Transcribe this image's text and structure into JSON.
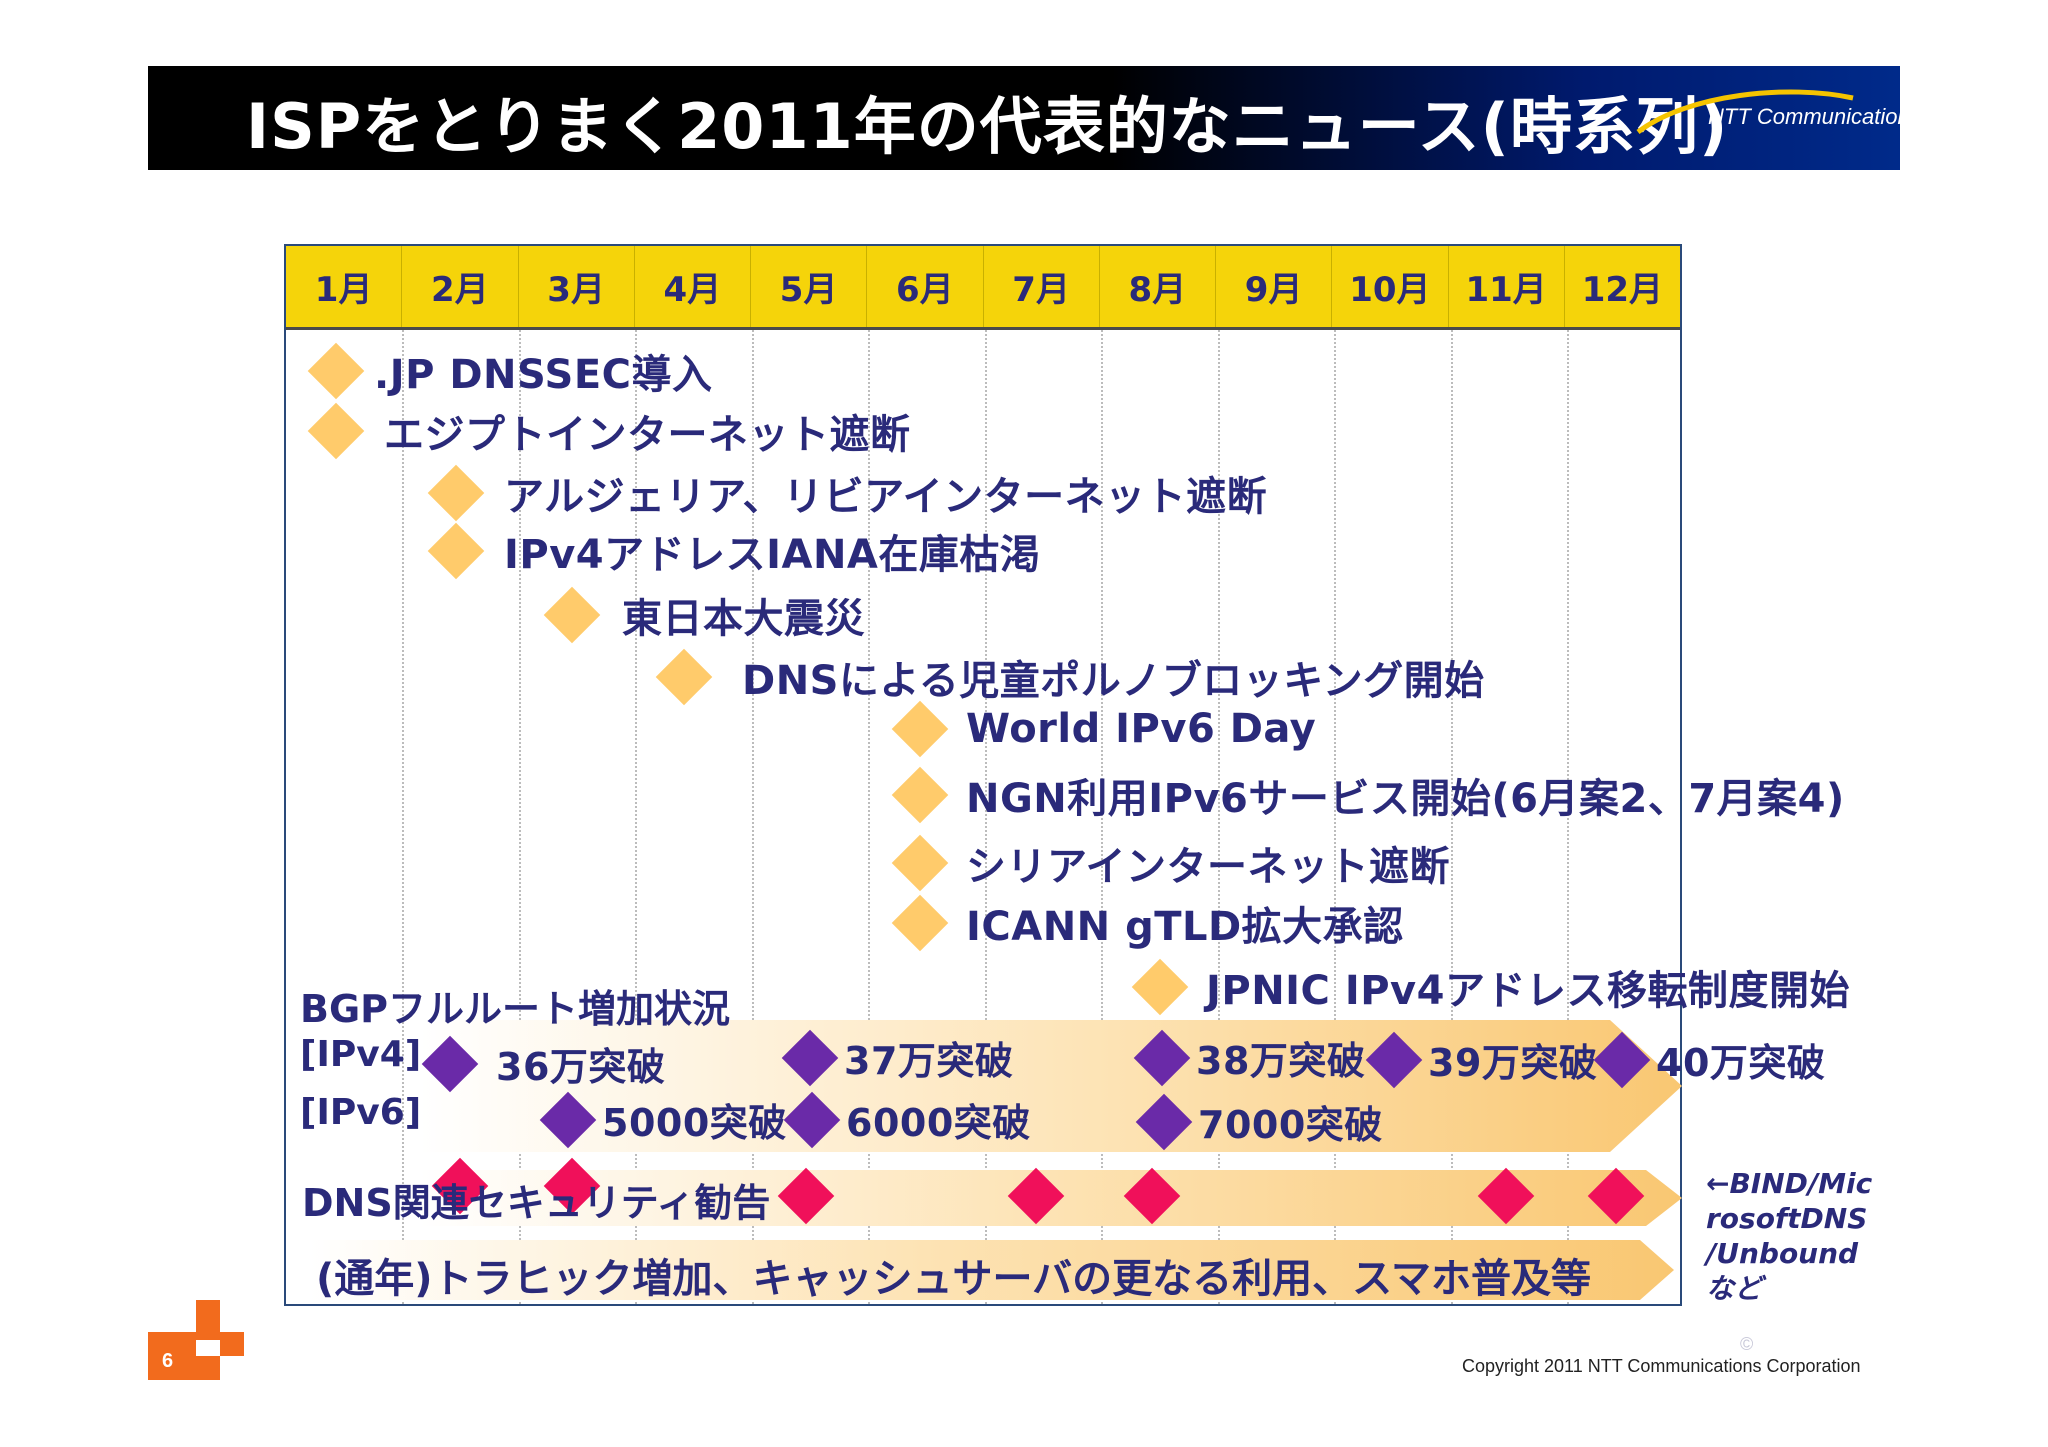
{
  "title": "ISPをとりまく2011年の代表的なニュース(時系列)",
  "brand": "NTT Communications",
  "months": [
    "1月",
    "2月",
    "3月",
    "4月",
    "5月",
    "6月",
    "7月",
    "8月",
    "9月",
    "10月",
    "11月",
    "12月"
  ],
  "events": [
    ".JP DNSSEC導入",
    "エジプトインターネット遮断",
    "アルジェリア、リビアインターネット遮断",
    "IPv4アドレスIANA在庫枯渇",
    "東日本大震災",
    "DNSによる児童ポルノブロッキング開始",
    "World IPv6 Day",
    "NGN利用IPv6サービス開始(6月案2、7月案4)",
    "シリアインターネット遮断",
    "ICANN gTLD拡大承認",
    "JPNIC IPv4アドレス移転制度開始"
  ],
  "bgp": {
    "heading": "BGPフルルート増加状況",
    "ipv4_label": "[IPv4]",
    "ipv6_label": "[IPv6]",
    "ipv4": [
      "36万突破",
      "37万突破",
      "38万突破",
      "39万突破",
      "40万突破"
    ],
    "ipv6": [
      "5000突破",
      "6000突破",
      "7000突破"
    ]
  },
  "dns_advisory": "DNS関連セキュリティ勧告",
  "traffic": "(通年)トラヒック増加、キャッシュサーバの更なる利用、スマホ普及等",
  "side_note": [
    "←BIND/Mic",
    "rosoftDNS",
    "/Unbound",
    "など"
  ],
  "page_number": "6",
  "copyright": "Copyright 2011 NTT Communications Corporation",
  "copy_mark": "©",
  "colors": {
    "header_bar": "#000000",
    "month_row": "#f5d40a",
    "event_marker": "#ffcb6b",
    "bgp_marker": "#6a2aa8",
    "advisory_marker": "#f0105a",
    "text": "#2a2a7a",
    "logo_orange": "#f26b1d"
  }
}
